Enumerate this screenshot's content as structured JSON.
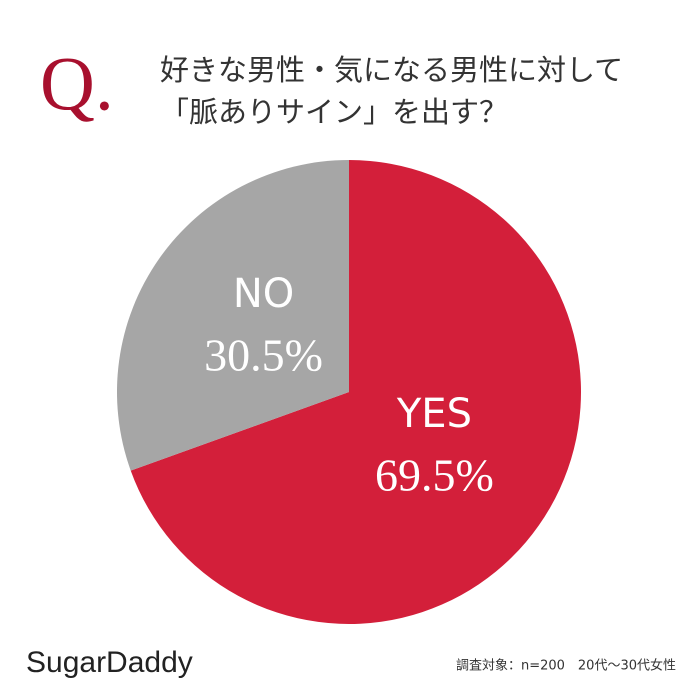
{
  "chart_data": {
    "type": "pie",
    "marker": "Q.",
    "title_lines": [
      "好きな男性・気になる男性に対して",
      "「脈ありサイン」を出す？"
    ],
    "categories": [
      "YES",
      "NO"
    ],
    "values": [
      69.5,
      30.5
    ],
    "value_labels": [
      "69.5%",
      "30.5%"
    ],
    "colors": [
      "#d31f3a",
      "#a6a6a6"
    ],
    "brand": "SugarDaddy",
    "source": "調査対象：n=200　20代～30代女性"
  }
}
